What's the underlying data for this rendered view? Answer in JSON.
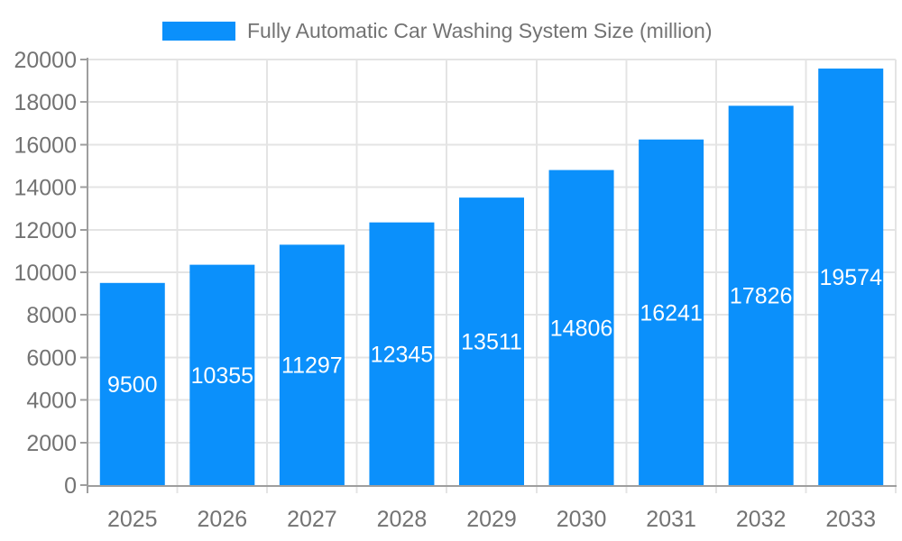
{
  "chart_data": {
    "type": "bar",
    "title": "Fully Automatic Car Washing System Size (million)",
    "series_name": "Fully Automatic Car Washing System Size (million)",
    "categories": [
      "2025",
      "2026",
      "2027",
      "2028",
      "2029",
      "2030",
      "2031",
      "2032",
      "2033"
    ],
    "values": [
      9500,
      10355,
      11297,
      12345,
      13511,
      14806,
      16241,
      17826,
      19574
    ],
    "xlabel": "",
    "ylabel": "",
    "ylim": [
      0,
      20000
    ],
    "ytick_step": 2000,
    "yticks": [
      0,
      2000,
      4000,
      6000,
      8000,
      10000,
      12000,
      14000,
      16000,
      18000,
      20000
    ],
    "grid": true,
    "legend_position": "top",
    "data_labels_position": "inside-center",
    "colors": {
      "bar": "#0b90fb",
      "value_label": "#ffffff",
      "axis_text": "#737373",
      "grid_line": "#e4e4e4",
      "axis_line": "#9e9e9e",
      "background": "#ffffff"
    }
  }
}
